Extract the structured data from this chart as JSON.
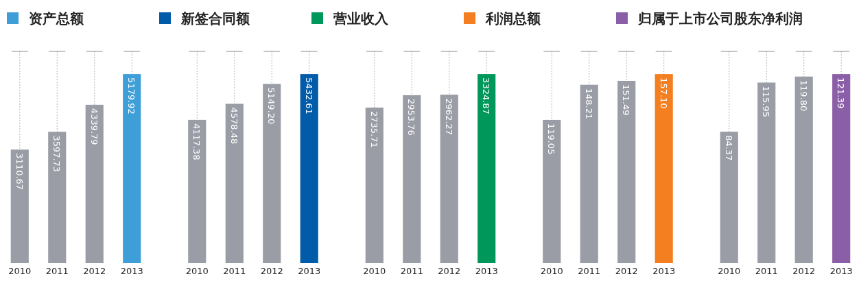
{
  "chart_data": [
    {
      "type": "bar",
      "categories": [
        "2010",
        "2011",
        "2012",
        "2013"
      ],
      "series": [
        {
          "name": "资产总额",
          "colors": [
            "#9a9da6",
            "#9a9da6",
            "#9a9da6",
            "#3e9fd8"
          ],
          "values": [
            3110.67,
            3597.73,
            4339.79,
            5179.92
          ],
          "value_labels": [
            "3110.67",
            "3597.73",
            "4339.79",
            "5179.92"
          ]
        }
      ],
      "grid": "x",
      "legend": "top left"
    },
    {
      "type": "bar",
      "categories": [
        "2010",
        "2011",
        "2012",
        "2013"
      ],
      "series": [
        {
          "name": "新签合同额",
          "colors": [
            "#9a9da6",
            "#9a9da6",
            "#9a9da6",
            "#005ba8"
          ],
          "values": [
            4117.38,
            4578.48,
            5149.2,
            5432.61
          ],
          "value_labels": [
            "4117.38",
            "4578.48",
            "5149.20",
            "5432.61"
          ]
        }
      ],
      "grid": "x",
      "legend": "top left"
    },
    {
      "type": "bar",
      "categories": [
        "2010",
        "2011",
        "2012",
        "2013"
      ],
      "series": [
        {
          "name": "营业收入",
          "colors": [
            "#9a9da6",
            "#9a9da6",
            "#9a9da6",
            "#00975a"
          ],
          "values": [
            2735.71,
            2953.76,
            2962.27,
            3324.87
          ],
          "value_labels": [
            "2735.71",
            "2953.76",
            "2962.27",
            "3324.87"
          ]
        }
      ],
      "grid": "x",
      "legend": "top left"
    },
    {
      "type": "bar",
      "categories": [
        "2010",
        "2011",
        "2012",
        "2013"
      ],
      "series": [
        {
          "name": "利润总额",
          "colors": [
            "#9a9da6",
            "#9a9da6",
            "#9a9da6",
            "#f47f20"
          ],
          "values": [
            119.05,
            148.21,
            151.49,
            157.1
          ],
          "value_labels": [
            "119.05",
            "148.21",
            "151.49",
            "157.10"
          ]
        }
      ],
      "grid": "x",
      "legend": "top left"
    },
    {
      "type": "bar",
      "categories": [
        "2010",
        "2011",
        "2012",
        "2013"
      ],
      "series": [
        {
          "name": "归属于上市公司股东净利润",
          "colors": [
            "#9a9da6",
            "#9a9da6",
            "#9a9da6",
            "#8b5fa8"
          ],
          "values": [
            84.37,
            115.95,
            119.8,
            121.39
          ],
          "value_labels": [
            "84.37",
            "115.95",
            "119.80",
            "121.39"
          ]
        }
      ],
      "grid": "x",
      "legend": "top left"
    }
  ]
}
